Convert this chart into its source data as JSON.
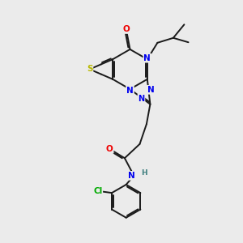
{
  "bg_color": "#ebebeb",
  "bond_color": "#1a1a1a",
  "atom_colors": {
    "S": "#b8b800",
    "N": "#0000ee",
    "O": "#ee0000",
    "Cl": "#00aa00",
    "H": "#408080",
    "C": "#1a1a1a"
  },
  "lw": 1.4,
  "dbo": 0.055,
  "fs": 7.5
}
